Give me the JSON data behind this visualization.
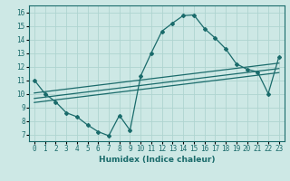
{
  "xlabel": "Humidex (Indice chaleur)",
  "ylabel": "",
  "bg_color": "#cde8e5",
  "grid_color": "#afd4d0",
  "line_color": "#1a6b6b",
  "xlim": [
    -0.5,
    23.5
  ],
  "ylim": [
    6.5,
    16.5
  ],
  "xticks": [
    0,
    1,
    2,
    3,
    4,
    5,
    6,
    7,
    8,
    9,
    10,
    11,
    12,
    13,
    14,
    15,
    16,
    17,
    18,
    19,
    20,
    21,
    22,
    23
  ],
  "yticks": [
    7,
    8,
    9,
    10,
    11,
    12,
    13,
    14,
    15,
    16
  ],
  "curve_x": [
    0,
    1,
    2,
    3,
    4,
    5,
    6,
    7,
    8,
    9,
    10,
    11,
    12,
    13,
    14,
    15,
    16,
    17,
    18,
    19,
    20,
    21,
    22,
    23
  ],
  "curve_y": [
    11.0,
    10.0,
    9.4,
    8.6,
    8.3,
    7.7,
    7.2,
    6.9,
    8.4,
    7.3,
    11.3,
    13.0,
    14.6,
    15.2,
    15.75,
    15.8,
    14.8,
    14.1,
    13.3,
    12.2,
    11.8,
    11.6,
    10.0,
    12.7
  ],
  "reg_line1_x": [
    0,
    23
  ],
  "reg_line1_y": [
    9.65,
    11.85
  ],
  "reg_line2_x": [
    0,
    23
  ],
  "reg_line2_y": [
    10.05,
    12.25
  ],
  "reg_line3_x": [
    0,
    23
  ],
  "reg_line3_y": [
    9.35,
    11.55
  ],
  "tick_fontsize": 5.5,
  "xlabel_fontsize": 6.5
}
